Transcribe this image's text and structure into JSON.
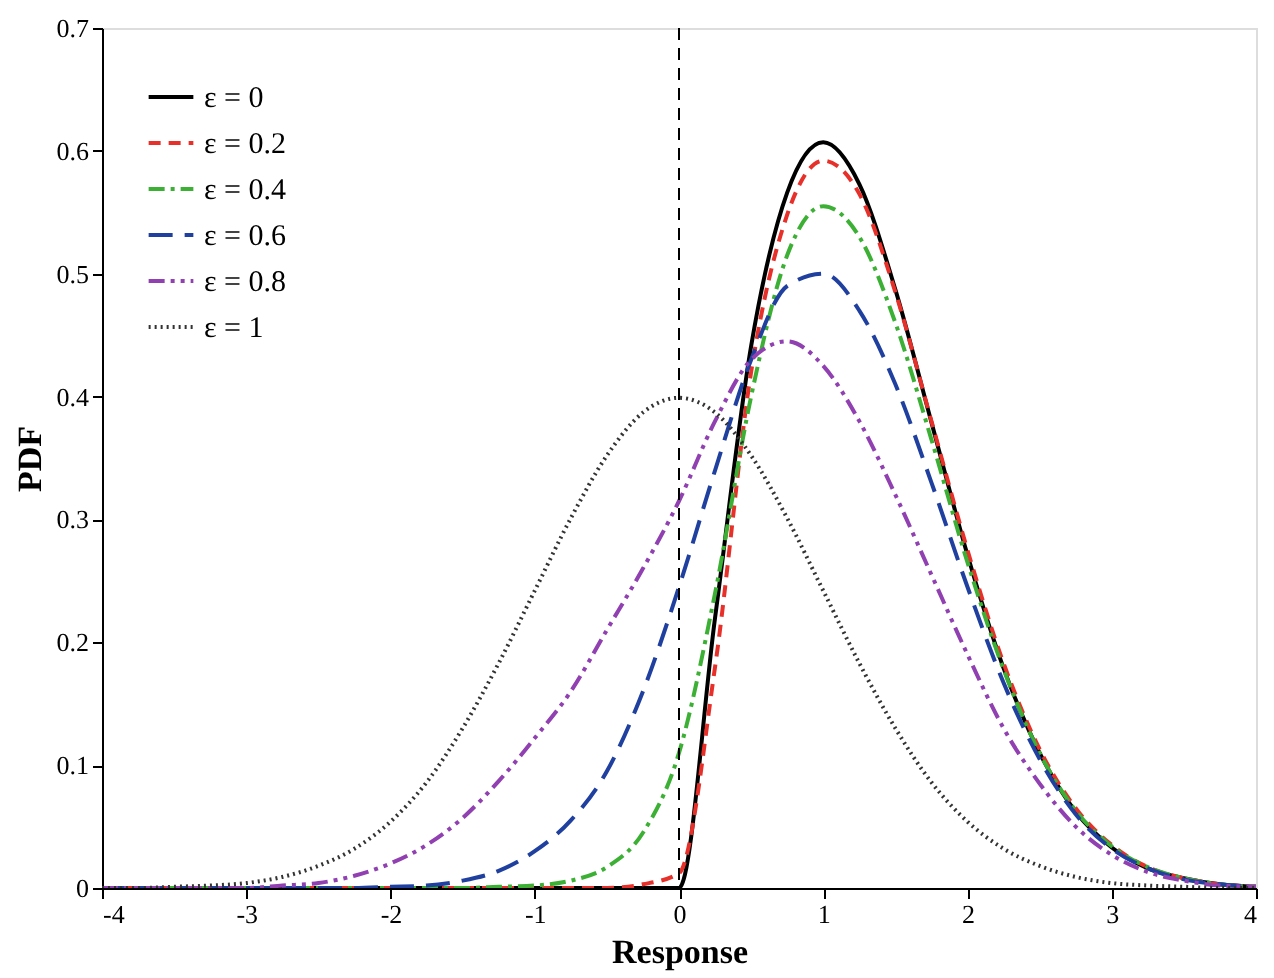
{
  "chart_data": {
    "type": "line",
    "xlabel": "Response",
    "ylabel": "PDF",
    "xlim": [
      -4,
      4
    ],
    "ylim": [
      0,
      0.7
    ],
    "xticks": [
      -4,
      -3,
      -2,
      -1,
      0,
      1,
      2,
      3,
      4
    ],
    "yticks": [
      0,
      0.1,
      0.2,
      0.3,
      0.4,
      0.5,
      0.6,
      0.7
    ],
    "grid": false,
    "legend": "top left",
    "marker": "none",
    "ref_lines": [
      {
        "axis": "x",
        "value": 0,
        "color": "#000000",
        "line_style": "dashed"
      }
    ],
    "series": [
      {
        "name": "ε = 0",
        "color": "#000000",
        "line_style": "solid",
        "x": [
          -4,
          -1,
          -0.5,
          0,
          0.25,
          0.5,
          0.75,
          1,
          1.25,
          1.5,
          1.75,
          2,
          2.25,
          2.5,
          2.75,
          3,
          3.25,
          3.5,
          3.75,
          4
        ],
        "values": [
          0,
          0,
          0,
          0,
          0.22,
          0.441,
          0.566,
          0.607,
          0.573,
          0.487,
          0.379,
          0.271,
          0.179,
          0.11,
          0.062,
          0.033,
          0.016,
          0.008,
          0.003,
          0.001
        ]
      },
      {
        "name": "ε = 0.2",
        "color": "#e8302a",
        "line_style": "dashed",
        "x": [
          -4,
          -1,
          -0.5,
          -0.25,
          0,
          0.25,
          0.5,
          0.75,
          1,
          1.25,
          1.5,
          1.75,
          2,
          2.25,
          2.5,
          2.75,
          3,
          3.25,
          3.5,
          3.75,
          4
        ],
        "values": [
          0,
          0,
          0,
          0.003,
          0.012,
          0.18,
          0.42,
          0.548,
          0.592,
          0.565,
          0.485,
          0.38,
          0.275,
          0.183,
          0.113,
          0.065,
          0.035,
          0.017,
          0.008,
          0.003,
          0.001
        ]
      },
      {
        "name": "ε = 0.4",
        "color": "#3cb034",
        "line_style": "dashdot",
        "x": [
          -4,
          -1.5,
          -1.25,
          -1,
          -0.75,
          -0.5,
          -0.25,
          0,
          0.25,
          0.5,
          0.75,
          1,
          1.25,
          1.5,
          1.75,
          2,
          2.25,
          2.5,
          2.75,
          3,
          3.25,
          3.5,
          3.75,
          4
        ],
        "values": [
          0,
          0,
          0.001,
          0.002,
          0.006,
          0.017,
          0.045,
          0.11,
          0.24,
          0.4,
          0.515,
          0.555,
          0.53,
          0.46,
          0.365,
          0.265,
          0.178,
          0.11,
          0.063,
          0.034,
          0.017,
          0.008,
          0.003,
          0.001
        ]
      },
      {
        "name": "ε = 0.6",
        "color": "#2040a0",
        "line_style": "longdash",
        "x": [
          -4,
          -2.25,
          -2,
          -1.75,
          -1.5,
          -1.25,
          -1,
          -0.75,
          -0.5,
          -0.25,
          0,
          0.25,
          0.5,
          0.75,
          1,
          1.25,
          1.5,
          1.75,
          2,
          2.25,
          2.5,
          2.75,
          3,
          3.25,
          3.5,
          3.75,
          4
        ],
        "values": [
          0,
          0,
          0.001,
          0.002,
          0.006,
          0.014,
          0.03,
          0.055,
          0.095,
          0.16,
          0.245,
          0.34,
          0.43,
          0.49,
          0.5,
          0.47,
          0.41,
          0.33,
          0.245,
          0.167,
          0.105,
          0.06,
          0.032,
          0.016,
          0.007,
          0.003,
          0.001
        ]
      },
      {
        "name": "ε = 0.8",
        "color": "#9040b0",
        "line_style": "dashdotdot",
        "x": [
          -4,
          -3,
          -2.75,
          -2.5,
          -2.25,
          -2,
          -1.75,
          -1.5,
          -1.25,
          -1,
          -0.75,
          -0.5,
          -0.25,
          0,
          0.25,
          0.5,
          0.75,
          1,
          1.25,
          1.5,
          1.75,
          2,
          2.25,
          2.5,
          2.75,
          3,
          3.25,
          3.5,
          3.75,
          4
        ],
        "values": [
          0,
          0,
          0.002,
          0.004,
          0.01,
          0.02,
          0.035,
          0.057,
          0.087,
          0.122,
          0.16,
          0.21,
          0.26,
          0.315,
          0.38,
          0.43,
          0.445,
          0.425,
          0.38,
          0.32,
          0.255,
          0.19,
          0.13,
          0.085,
          0.05,
          0.027,
          0.013,
          0.006,
          0.002,
          0.001
        ]
      },
      {
        "name": "ε = 1",
        "color": "#333333",
        "line_style": "dotted",
        "x": [
          -4,
          -3.75,
          -3.5,
          -3.25,
          -3,
          -2.75,
          -2.5,
          -2.25,
          -2,
          -1.75,
          -1.5,
          -1.25,
          -1,
          -0.75,
          -0.5,
          -0.25,
          0,
          0.25,
          0.5,
          0.75,
          1,
          1.25,
          1.5,
          1.75,
          2,
          2.25,
          2.5,
          2.75,
          3,
          3.25,
          3.5,
          3.75,
          4
        ],
        "values": [
          0,
          0,
          0.001,
          0.002,
          0.004,
          0.009,
          0.018,
          0.032,
          0.054,
          0.086,
          0.13,
          0.183,
          0.242,
          0.301,
          0.352,
          0.387,
          0.399,
          0.387,
          0.352,
          0.301,
          0.242,
          0.183,
          0.13,
          0.086,
          0.054,
          0.032,
          0.018,
          0.009,
          0.004,
          0.002,
          0.001,
          0,
          0
        ]
      }
    ]
  }
}
